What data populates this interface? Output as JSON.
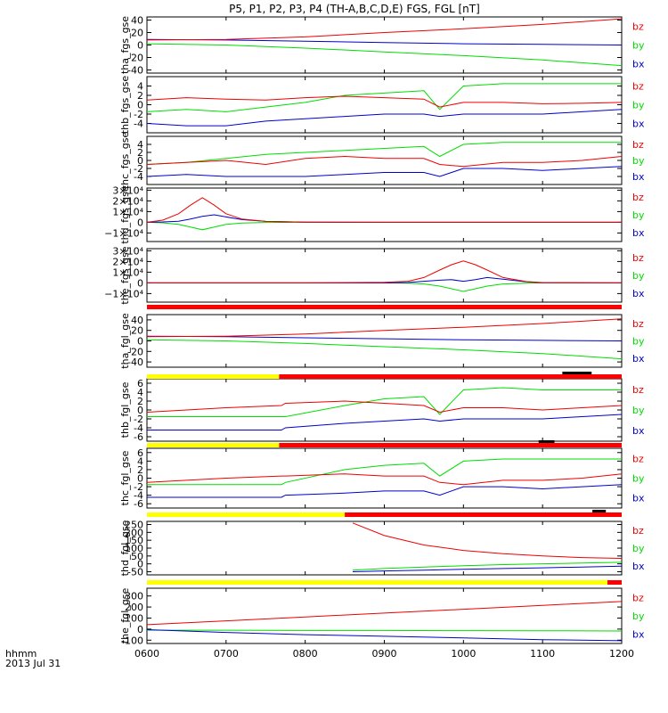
{
  "title": "P5, P1, P2, P3, P4 (TH-A,B,C,D,E) FGS, FGL [nT]",
  "x_axis": {
    "tick_labels": [
      "0600",
      "0700",
      "0800",
      "0900",
      "1000",
      "1100",
      "1200"
    ],
    "label_line1": "hhmm",
    "label_line2": "2013 Jul 31",
    "range_hours": [
      6.0,
      12.0
    ]
  },
  "legend_labels": [
    "bz",
    "by",
    "bx"
  ],
  "colors": {
    "bz": "#ee0000",
    "by": "#00dd00",
    "bx": "#0000cc",
    "mode_slow": "#ffff00",
    "mode_fast": "#ff0000",
    "marker": "#000000"
  },
  "chart_data": [
    {
      "type": "line",
      "panel": "tha_fgs_gse",
      "ylabel": "tha_fgs_gse",
      "ylim": [
        -45,
        45
      ],
      "yticks": [
        40,
        20,
        0,
        -20,
        -40
      ],
      "x": [
        6.0,
        7.0,
        8.0,
        9.0,
        10.0,
        11.0,
        12.0
      ],
      "series": [
        {
          "name": "bz",
          "values": [
            8,
            9,
            13,
            20,
            26,
            33,
            42
          ]
        },
        {
          "name": "by",
          "values": [
            2,
            0,
            -5,
            -11,
            -17,
            -24,
            -33
          ]
        },
        {
          "name": "bx",
          "values": [
            9,
            8,
            6,
            4,
            2,
            1,
            0
          ]
        }
      ]
    },
    {
      "type": "line",
      "panel": "thb_fgs_gse",
      "ylabel": "thb_fgs_gse",
      "ylim": [
        -6,
        6
      ],
      "yticks": [
        4,
        2,
        0,
        -2,
        -4
      ],
      "x": [
        6.0,
        6.5,
        7.0,
        7.5,
        8.0,
        8.5,
        9.0,
        9.5,
        9.7,
        10.0,
        10.5,
        11.0,
        11.5,
        12.0
      ],
      "series": [
        {
          "name": "bz",
          "values": [
            1.0,
            1.5,
            1.2,
            1.0,
            1.5,
            1.8,
            1.5,
            1.2,
            -0.5,
            0.5,
            0.5,
            0.2,
            0.3,
            0.5
          ]
        },
        {
          "name": "by",
          "values": [
            -1.5,
            -1.0,
            -1.5,
            -0.5,
            0.5,
            2.0,
            2.5,
            3.0,
            -1.0,
            4.0,
            4.5,
            4.5,
            4.5,
            4.5
          ]
        },
        {
          "name": "bx",
          "values": [
            -4.0,
            -4.5,
            -4.5,
            -3.5,
            -3.0,
            -2.5,
            -2.0,
            -2.0,
            -2.5,
            -2.0,
            -2.0,
            -2.0,
            -1.5,
            -1.0
          ]
        }
      ]
    },
    {
      "type": "line",
      "panel": "thc_fgs_gse",
      "ylabel": "thc_fgs_gse",
      "ylim": [
        -6,
        6
      ],
      "yticks": [
        4,
        2,
        0,
        -2,
        -4
      ],
      "x": [
        6.0,
        6.5,
        7.0,
        7.5,
        8.0,
        8.5,
        9.0,
        9.5,
        9.7,
        10.0,
        10.5,
        11.0,
        11.5,
        12.0
      ],
      "series": [
        {
          "name": "bz",
          "values": [
            -1.0,
            -0.5,
            0.0,
            -1.0,
            0.5,
            1.0,
            0.5,
            0.5,
            -1.0,
            -1.5,
            -0.5,
            -0.5,
            0.0,
            1.0
          ]
        },
        {
          "name": "by",
          "values": [
            -1.0,
            -0.5,
            0.5,
            1.5,
            2.0,
            2.5,
            3.0,
            3.5,
            1.0,
            4.0,
            4.5,
            4.5,
            4.5,
            4.5
          ]
        },
        {
          "name": "bx",
          "values": [
            -4.0,
            -3.5,
            -4.0,
            -4.0,
            -4.0,
            -3.5,
            -3.0,
            -3.0,
            -4.0,
            -2.0,
            -2.0,
            -2.5,
            -2.0,
            -1.5
          ]
        }
      ]
    },
    {
      "type": "line",
      "panel": "thd_fgs_gse",
      "ylabel": "thd_fgs_gse",
      "ylim": [
        -18000,
        32000
      ],
      "yticks": [
        30000,
        20000,
        10000,
        0,
        -10000
      ],
      "ytick_labels": [
        "3×10⁴",
        "2×10⁴",
        "1×10⁴",
        "0",
        "−1×10⁴"
      ],
      "x": [
        6.0,
        6.2,
        6.4,
        6.55,
        6.7,
        6.85,
        7.0,
        7.2,
        7.5,
        8.0,
        9.0,
        10.0,
        11.0,
        12.0
      ],
      "series": [
        {
          "name": "bz",
          "values": [
            0,
            2000,
            8000,
            16000,
            23000,
            16000,
            8000,
            3000,
            800,
            200,
            0,
            0,
            0,
            0
          ]
        },
        {
          "name": "by",
          "values": [
            0,
            -500,
            -2000,
            -4500,
            -7000,
            -4500,
            -2000,
            -700,
            -200,
            0,
            0,
            0,
            0,
            0
          ]
        },
        {
          "name": "bx",
          "values": [
            0,
            300,
            1000,
            3000,
            5500,
            7000,
            5000,
            2500,
            800,
            100,
            0,
            0,
            0,
            0
          ]
        }
      ]
    },
    {
      "type": "line",
      "panel": "the_fgs_gse",
      "ylabel": "the_fgs_gse",
      "ylim": [
        -18000,
        32000
      ],
      "yticks": [
        30000,
        20000,
        10000,
        0,
        -10000
      ],
      "ytick_labels": [
        "3×10⁴",
        "2×10⁴",
        "1×10⁴",
        "0",
        "−1×10⁴"
      ],
      "x": [
        6.0,
        8.0,
        9.0,
        9.3,
        9.5,
        9.7,
        9.85,
        10.0,
        10.15,
        10.3,
        10.5,
        10.8,
        11.0,
        12.0
      ],
      "series": [
        {
          "name": "bz",
          "values": [
            0,
            0,
            500,
            1500,
            5000,
            12000,
            17000,
            20500,
            17000,
            12000,
            5000,
            1200,
            300,
            0
          ]
        },
        {
          "name": "by",
          "values": [
            0,
            0,
            0,
            -300,
            -1000,
            -3000,
            -5500,
            -8000,
            -5500,
            -3000,
            -1000,
            -300,
            0,
            0
          ]
        },
        {
          "name": "bx",
          "values": [
            0,
            0,
            0,
            300,
            1500,
            2500,
            3000,
            1500,
            3000,
            5000,
            3500,
            1000,
            200,
            0
          ]
        }
      ]
    },
    {
      "type": "line",
      "panel": "tha_fgl_gse",
      "ylabel": "tha_fgl_gse",
      "ylim": [
        -50,
        50
      ],
      "yticks": [
        40,
        20,
        0,
        -20,
        -40
      ],
      "x": [
        6.0,
        7.0,
        8.0,
        9.0,
        10.0,
        11.0,
        12.0
      ],
      "series": [
        {
          "name": "bz",
          "values": [
            8,
            9,
            13,
            20,
            26,
            33,
            42
          ]
        },
        {
          "name": "by",
          "values": [
            2,
            0,
            -5,
            -11,
            -17,
            -24,
            -34
          ]
        },
        {
          "name": "bx",
          "values": [
            9,
            8,
            6,
            4,
            2,
            1,
            0
          ]
        }
      ]
    },
    {
      "type": "line",
      "panel": "thb_fgl_gse",
      "ylabel": "thb_fgl_gse",
      "ylim": [
        -7,
        7
      ],
      "yticks": [
        6,
        4,
        2,
        0,
        -2,
        -4,
        -6
      ],
      "x": [
        6.0,
        7.0,
        7.7,
        7.75,
        8.5,
        9.0,
        9.5,
        9.7,
        10.0,
        10.5,
        11.0,
        11.5,
        12.0
      ],
      "series": [
        {
          "name": "bz",
          "values": [
            -0.5,
            0.5,
            1.0,
            1.5,
            2.0,
            1.5,
            1.0,
            -0.5,
            0.5,
            0.5,
            0.0,
            0.5,
            1.0
          ]
        },
        {
          "name": "by",
          "values": [
            -1.5,
            -1.5,
            -1.5,
            -1.5,
            1.0,
            2.5,
            3.0,
            -1.0,
            4.5,
            5.0,
            4.5,
            4.5,
            4.5
          ]
        },
        {
          "name": "bx",
          "values": [
            -4.5,
            -4.5,
            -4.5,
            -4.0,
            -3.0,
            -2.5,
            -2.0,
            -2.5,
            -2.0,
            -2.0,
            -2.0,
            -1.5,
            -1.0
          ]
        }
      ]
    },
    {
      "type": "line",
      "panel": "thc_fgl_gse",
      "ylabel": "thc_fgl_gse",
      "ylim": [
        -7,
        7
      ],
      "yticks": [
        6,
        4,
        2,
        0,
        -2,
        -4,
        -6
      ],
      "x": [
        6.0,
        7.0,
        7.7,
        7.75,
        8.5,
        9.0,
        9.5,
        9.7,
        10.0,
        10.5,
        11.0,
        11.5,
        12.0
      ],
      "series": [
        {
          "name": "bz",
          "values": [
            -1.0,
            0.0,
            0.5,
            0.5,
            1.0,
            0.5,
            0.5,
            -1.0,
            -1.5,
            -0.5,
            -0.5,
            0.0,
            1.0
          ]
        },
        {
          "name": "by",
          "values": [
            -1.5,
            -1.5,
            -1.5,
            -1.0,
            2.0,
            3.0,
            3.5,
            0.5,
            4.0,
            4.5,
            4.5,
            4.5,
            4.5
          ]
        },
        {
          "name": "bx",
          "values": [
            -4.5,
            -4.5,
            -4.5,
            -4.0,
            -3.5,
            -3.0,
            -3.0,
            -4.0,
            -2.0,
            -2.0,
            -2.5,
            -2.0,
            -1.5
          ]
        }
      ]
    },
    {
      "type": "line",
      "panel": "thd_fgl_gse",
      "ylabel": "thd_fgl_gse",
      "ylim": [
        -70,
        270
      ],
      "yticks": [
        250,
        200,
        150,
        100,
        50,
        0,
        -50
      ],
      "x": [
        6.0,
        8.5,
        8.6,
        9.0,
        9.5,
        10.0,
        10.5,
        11.0,
        11.5,
        12.0
      ],
      "series": [
        {
          "name": "bz",
          "values": [
            null,
            null,
            260,
            180,
            120,
            85,
            65,
            50,
            40,
            35
          ]
        },
        {
          "name": "by",
          "values": [
            null,
            null,
            -40,
            -30,
            -20,
            -12,
            -5,
            0,
            5,
            10
          ]
        },
        {
          "name": "bx",
          "values": [
            null,
            null,
            -50,
            -45,
            -40,
            -35,
            -30,
            -25,
            -20,
            -15
          ]
        }
      ]
    },
    {
      "type": "line",
      "panel": "the_fgl_gse",
      "ylabel": "the_fgl_gse",
      "ylim": [
        -130,
        370
      ],
      "yticks": [
        300,
        200,
        100,
        0,
        -100
      ],
      "x": [
        6.0,
        7.0,
        8.0,
        9.0,
        10.0,
        11.0,
        12.0
      ],
      "series": [
        {
          "name": "bz",
          "values": [
            40,
            75,
            110,
            145,
            180,
            215,
            250
          ]
        },
        {
          "name": "by",
          "values": [
            -10,
            -10,
            -12,
            -12,
            -14,
            -15,
            -17
          ]
        },
        {
          "name": "bx",
          "values": [
            -5,
            -30,
            -50,
            -65,
            -80,
            -95,
            -105
          ]
        }
      ]
    }
  ],
  "mode_bars": [
    {
      "segments": [
        {
          "mode": "fast",
          "from": 6.0,
          "to": 12.0
        }
      ],
      "markers": []
    },
    {
      "segments": [
        {
          "mode": "slow",
          "from": 6.0,
          "to": 7.67
        },
        {
          "mode": "fast",
          "from": 7.67,
          "to": 12.0
        }
      ],
      "markers": [
        {
          "from": 11.25,
          "to": 11.62
        }
      ]
    },
    {
      "segments": [
        {
          "mode": "slow",
          "from": 6.0,
          "to": 7.67
        },
        {
          "mode": "fast",
          "from": 7.67,
          "to": 12.0
        }
      ],
      "markers": [
        {
          "from": 10.95,
          "to": 11.15
        }
      ]
    },
    {
      "segments": [
        {
          "mode": "slow",
          "from": 6.0,
          "to": 8.5
        },
        {
          "mode": "fast",
          "from": 8.5,
          "to": 12.0
        }
      ],
      "markers": [
        {
          "from": 11.63,
          "to": 11.8
        }
      ]
    },
    {
      "segments": [
        {
          "mode": "slow",
          "from": 6.0,
          "to": 11.82
        },
        {
          "mode": "fast",
          "from": 11.82,
          "to": 12.0
        }
      ],
      "markers": []
    }
  ]
}
